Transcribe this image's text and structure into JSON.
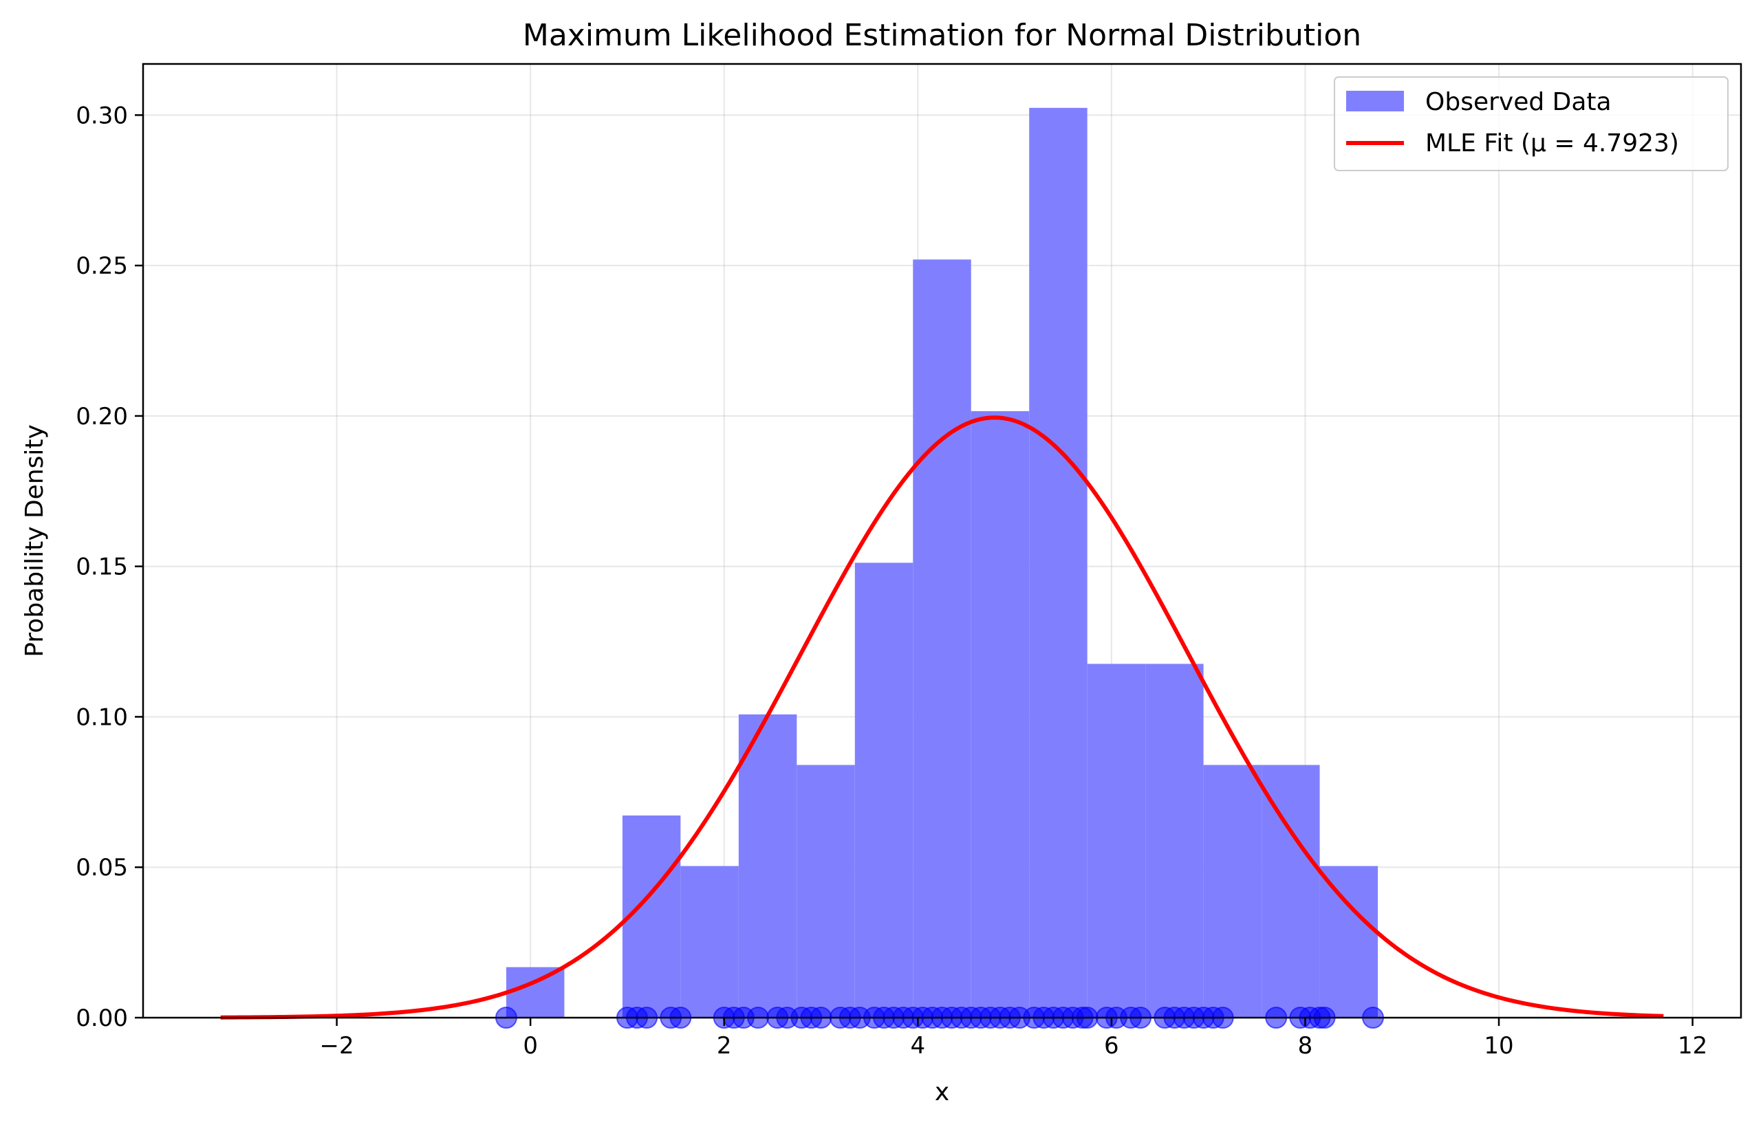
{
  "chart_data": {
    "type": "bar",
    "title": "Maximum Likelihood Estimation for Normal Distribution",
    "xlabel": "x",
    "ylabel": "Probability Density",
    "xlim": [
      -4.0,
      12.5
    ],
    "ylim": [
      0.0,
      0.317
    ],
    "grid": true,
    "legend_position": "top-right",
    "x_ticks": [
      -2,
      0,
      2,
      4,
      6,
      8,
      10,
      12
    ],
    "x_tick_labels": [
      "−2",
      "0",
      "2",
      "4",
      "6",
      "8",
      "10",
      "12"
    ],
    "y_ticks": [
      0.0,
      0.05,
      0.1,
      0.15,
      0.2,
      0.25,
      0.3
    ],
    "y_tick_labels": [
      "0.00",
      "0.05",
      "0.10",
      "0.15",
      "0.20",
      "0.25",
      "0.30"
    ],
    "series": [
      {
        "name": "Observed Data",
        "kind": "histogram",
        "color": "#8080ff",
        "bins": [
          {
            "x0": -0.25,
            "x1": 0.35,
            "density": 0.0168
          },
          {
            "x0": 0.35,
            "x1": 0.95,
            "density": 0.0
          },
          {
            "x0": 0.95,
            "x1": 1.55,
            "density": 0.0672
          },
          {
            "x0": 1.55,
            "x1": 2.15,
            "density": 0.0504
          },
          {
            "x0": 2.15,
            "x1": 2.75,
            "density": 0.1008
          },
          {
            "x0": 2.75,
            "x1": 3.35,
            "density": 0.084
          },
          {
            "x0": 3.35,
            "x1": 3.95,
            "density": 0.1512
          },
          {
            "x0": 3.95,
            "x1": 4.55,
            "density": 0.252
          },
          {
            "x0": 4.55,
            "x1": 5.15,
            "density": 0.2016
          },
          {
            "x0": 5.15,
            "x1": 5.75,
            "density": 0.3024
          },
          {
            "x0": 5.75,
            "x1": 6.35,
            "density": 0.1176
          },
          {
            "x0": 6.35,
            "x1": 6.95,
            "density": 0.1176
          },
          {
            "x0": 6.95,
            "x1": 7.55,
            "density": 0.084
          },
          {
            "x0": 7.55,
            "x1": 8.15,
            "density": 0.084
          },
          {
            "x0": 8.15,
            "x1": 8.75,
            "density": 0.0504
          }
        ]
      },
      {
        "name": "MLE Fit (μ = 4.7923)",
        "kind": "line",
        "color": "#ff0000",
        "mu": 4.7923,
        "sigma": 2.0,
        "x_range": [
          -3.2,
          11.7
        ]
      }
    ],
    "sample_points": {
      "color": "#0000ff",
      "y": 0.0,
      "x": [
        -0.25,
        1.0,
        1.1,
        1.2,
        1.45,
        1.55,
        2.0,
        2.1,
        2.2,
        2.35,
        2.55,
        2.65,
        2.8,
        2.9,
        3.0,
        3.2,
        3.3,
        3.4,
        3.55,
        3.65,
        3.75,
        3.85,
        3.95,
        4.05,
        4.15,
        4.25,
        4.35,
        4.45,
        4.55,
        4.65,
        4.75,
        4.85,
        4.95,
        5.05,
        5.2,
        5.3,
        5.4,
        5.5,
        5.6,
        5.7,
        5.75,
        5.95,
        6.05,
        6.2,
        6.3,
        6.55,
        6.65,
        6.75,
        6.85,
        6.95,
        7.05,
        7.15,
        7.7,
        7.95,
        8.05,
        8.15,
        8.2,
        8.7
      ]
    }
  }
}
